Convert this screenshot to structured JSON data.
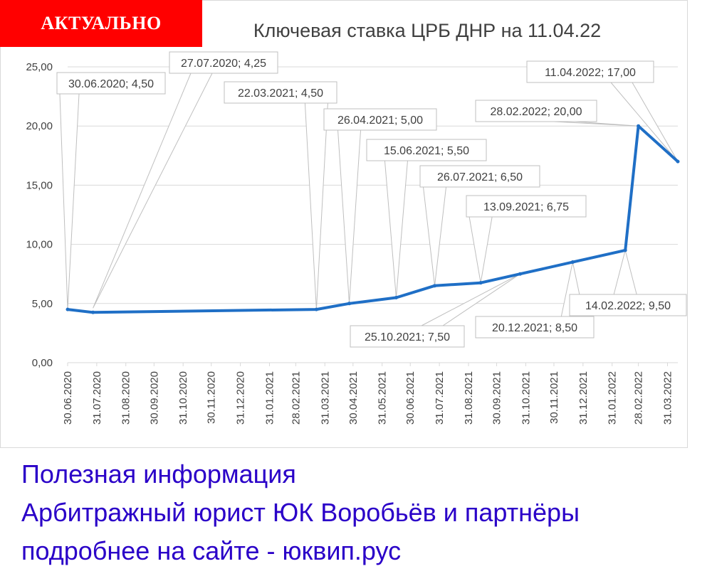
{
  "badge": "АКТУАЛЬНО",
  "colors": {
    "line": "#1f6fc6",
    "badge": "#ff0000",
    "footer": "#2a00c8",
    "grid": "#d9d9d9",
    "axis_text": "#404040"
  },
  "chart_data": {
    "type": "line",
    "title": "Ключевая ставка ЦРБ ДНР на 11.04.22",
    "xlabel": "",
    "ylabel": "",
    "ylim": [
      0,
      25
    ],
    "grid": true,
    "y_ticks": [
      "0,00",
      "5,00",
      "10,00",
      "15,00",
      "20,00",
      "25,00"
    ],
    "x_ticks": [
      "30.06.2020",
      "31.07.2020",
      "31.08.2020",
      "30.09.2020",
      "31.10.2020",
      "30.11.2020",
      "31.12.2020",
      "31.01.2021",
      "28.02.2021",
      "31.03.2021",
      "30.04.2021",
      "31.05.2021",
      "30.06.2021",
      "31.07.2021",
      "31.08.2021",
      "30.09.2021",
      "31.10.2021",
      "30.11.2021",
      "31.12.2021",
      "31.01.2022",
      "28.02.2022",
      "31.03.2022"
    ],
    "series": [
      {
        "points": [
          {
            "x": "2020-06-30",
            "y": 4.5
          },
          {
            "x": "2020-07-27",
            "y": 4.25
          },
          {
            "x": "2021-03-22",
            "y": 4.5
          },
          {
            "x": "2021-04-26",
            "y": 5.0
          },
          {
            "x": "2021-06-15",
            "y": 5.5
          },
          {
            "x": "2021-07-26",
            "y": 6.5
          },
          {
            "x": "2021-09-13",
            "y": 6.75
          },
          {
            "x": "2021-10-25",
            "y": 7.5
          },
          {
            "x": "2021-12-20",
            "y": 8.5
          },
          {
            "x": "2022-02-14",
            "y": 9.5
          },
          {
            "x": "2022-02-28",
            "y": 20.0
          },
          {
            "x": "2022-04-11",
            "y": 17.0
          }
        ]
      }
    ],
    "annotations": [
      "30.06.2020; 4,50",
      "27.07.2020; 4,25",
      "22.03.2021; 4,50",
      "26.04.2021; 5,00",
      "15.06.2021; 5,50",
      "26.07.2021; 6,50",
      "13.09.2021; 6,75",
      "25.10.2021; 7,50",
      "20.12.2021; 8,50",
      "14.02.2022; 9,50",
      "28.02.2022; 20,00",
      "11.04.2022; 17,00"
    ]
  },
  "footer": {
    "line1": "Полезная информация",
    "line2": "Арбитражный юрист ЮК Воробьёв и партнёры",
    "line3": "подробнее на сайте  - юквип.рус"
  }
}
